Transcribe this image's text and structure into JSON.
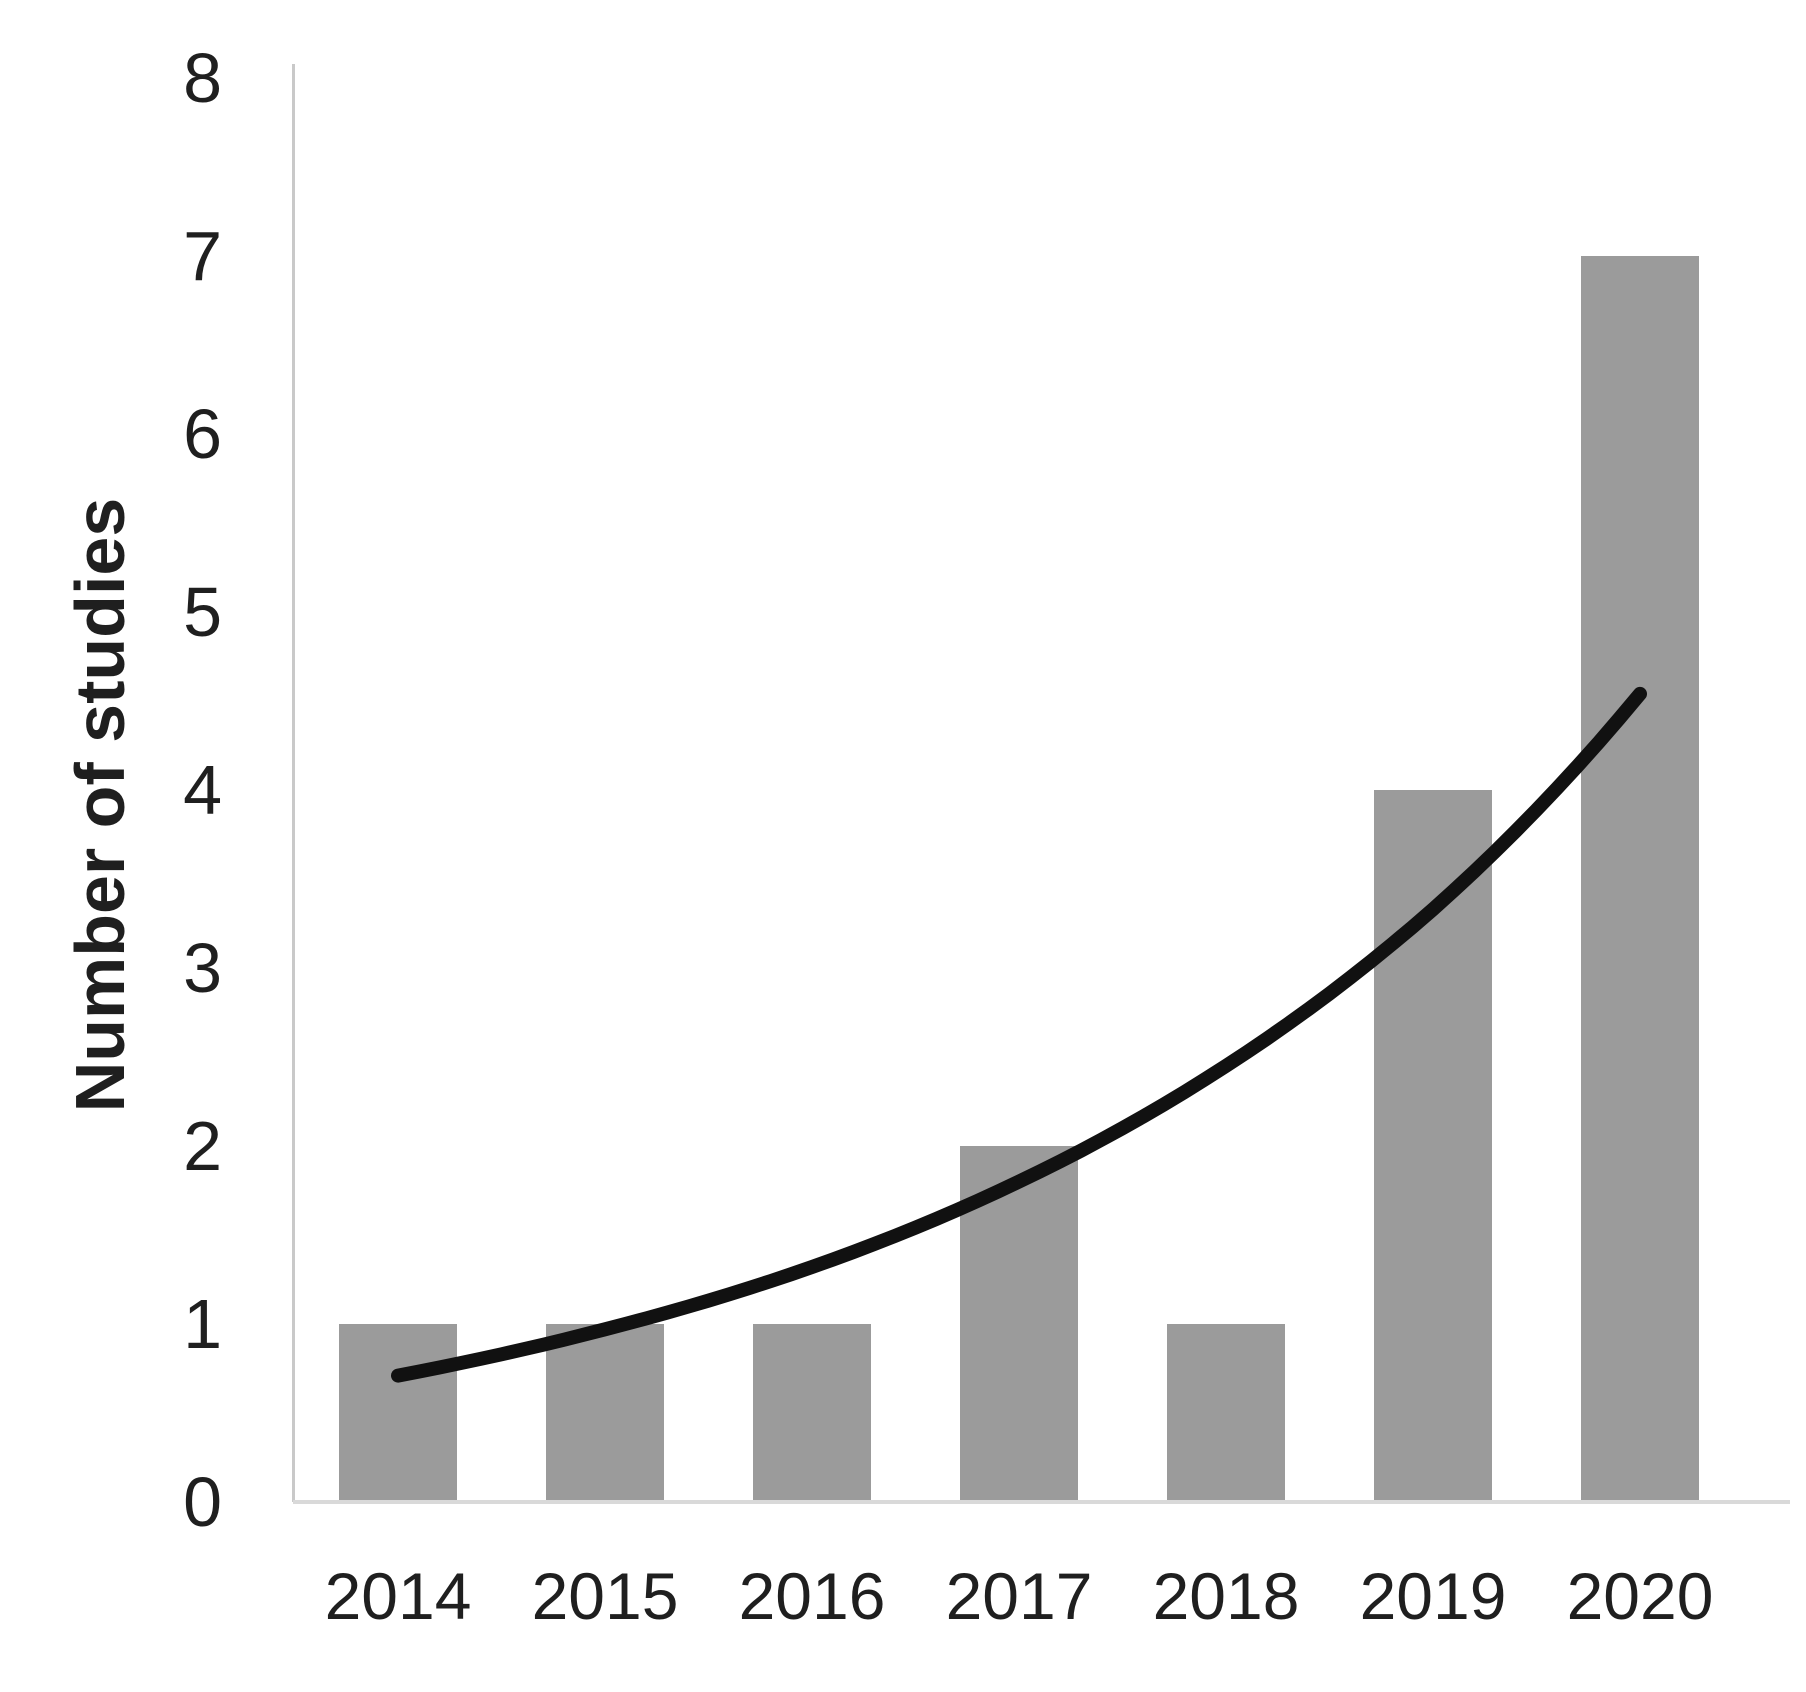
{
  "chart_data": {
    "type": "bar",
    "title": "",
    "categories": [
      "2014",
      "2015",
      "2016",
      "2017",
      "2018",
      "2019",
      "2020"
    ],
    "values": [
      1,
      1,
      1,
      2,
      1,
      4,
      7
    ],
    "series_name": "Number of studies",
    "trendline": {
      "type": "exponential",
      "values": [
        0.71,
        0.97,
        1.32,
        1.8,
        2.45,
        3.33,
        4.54
      ]
    },
    "xlabel": "",
    "ylabel": "Number of studies",
    "ylim": [
      0,
      8
    ],
    "ytick_step": 1,
    "yticks": [
      "0",
      "1",
      "2",
      "3",
      "4",
      "5",
      "6",
      "7",
      "8"
    ],
    "grid": false,
    "legend": "none",
    "colors": {
      "bar": "#9b9b9b",
      "trendline": "#111111",
      "y_axis_line": "#c9c9c9",
      "x_axis_line": "#d9d9d9",
      "text": "#1f1f1f"
    }
  }
}
